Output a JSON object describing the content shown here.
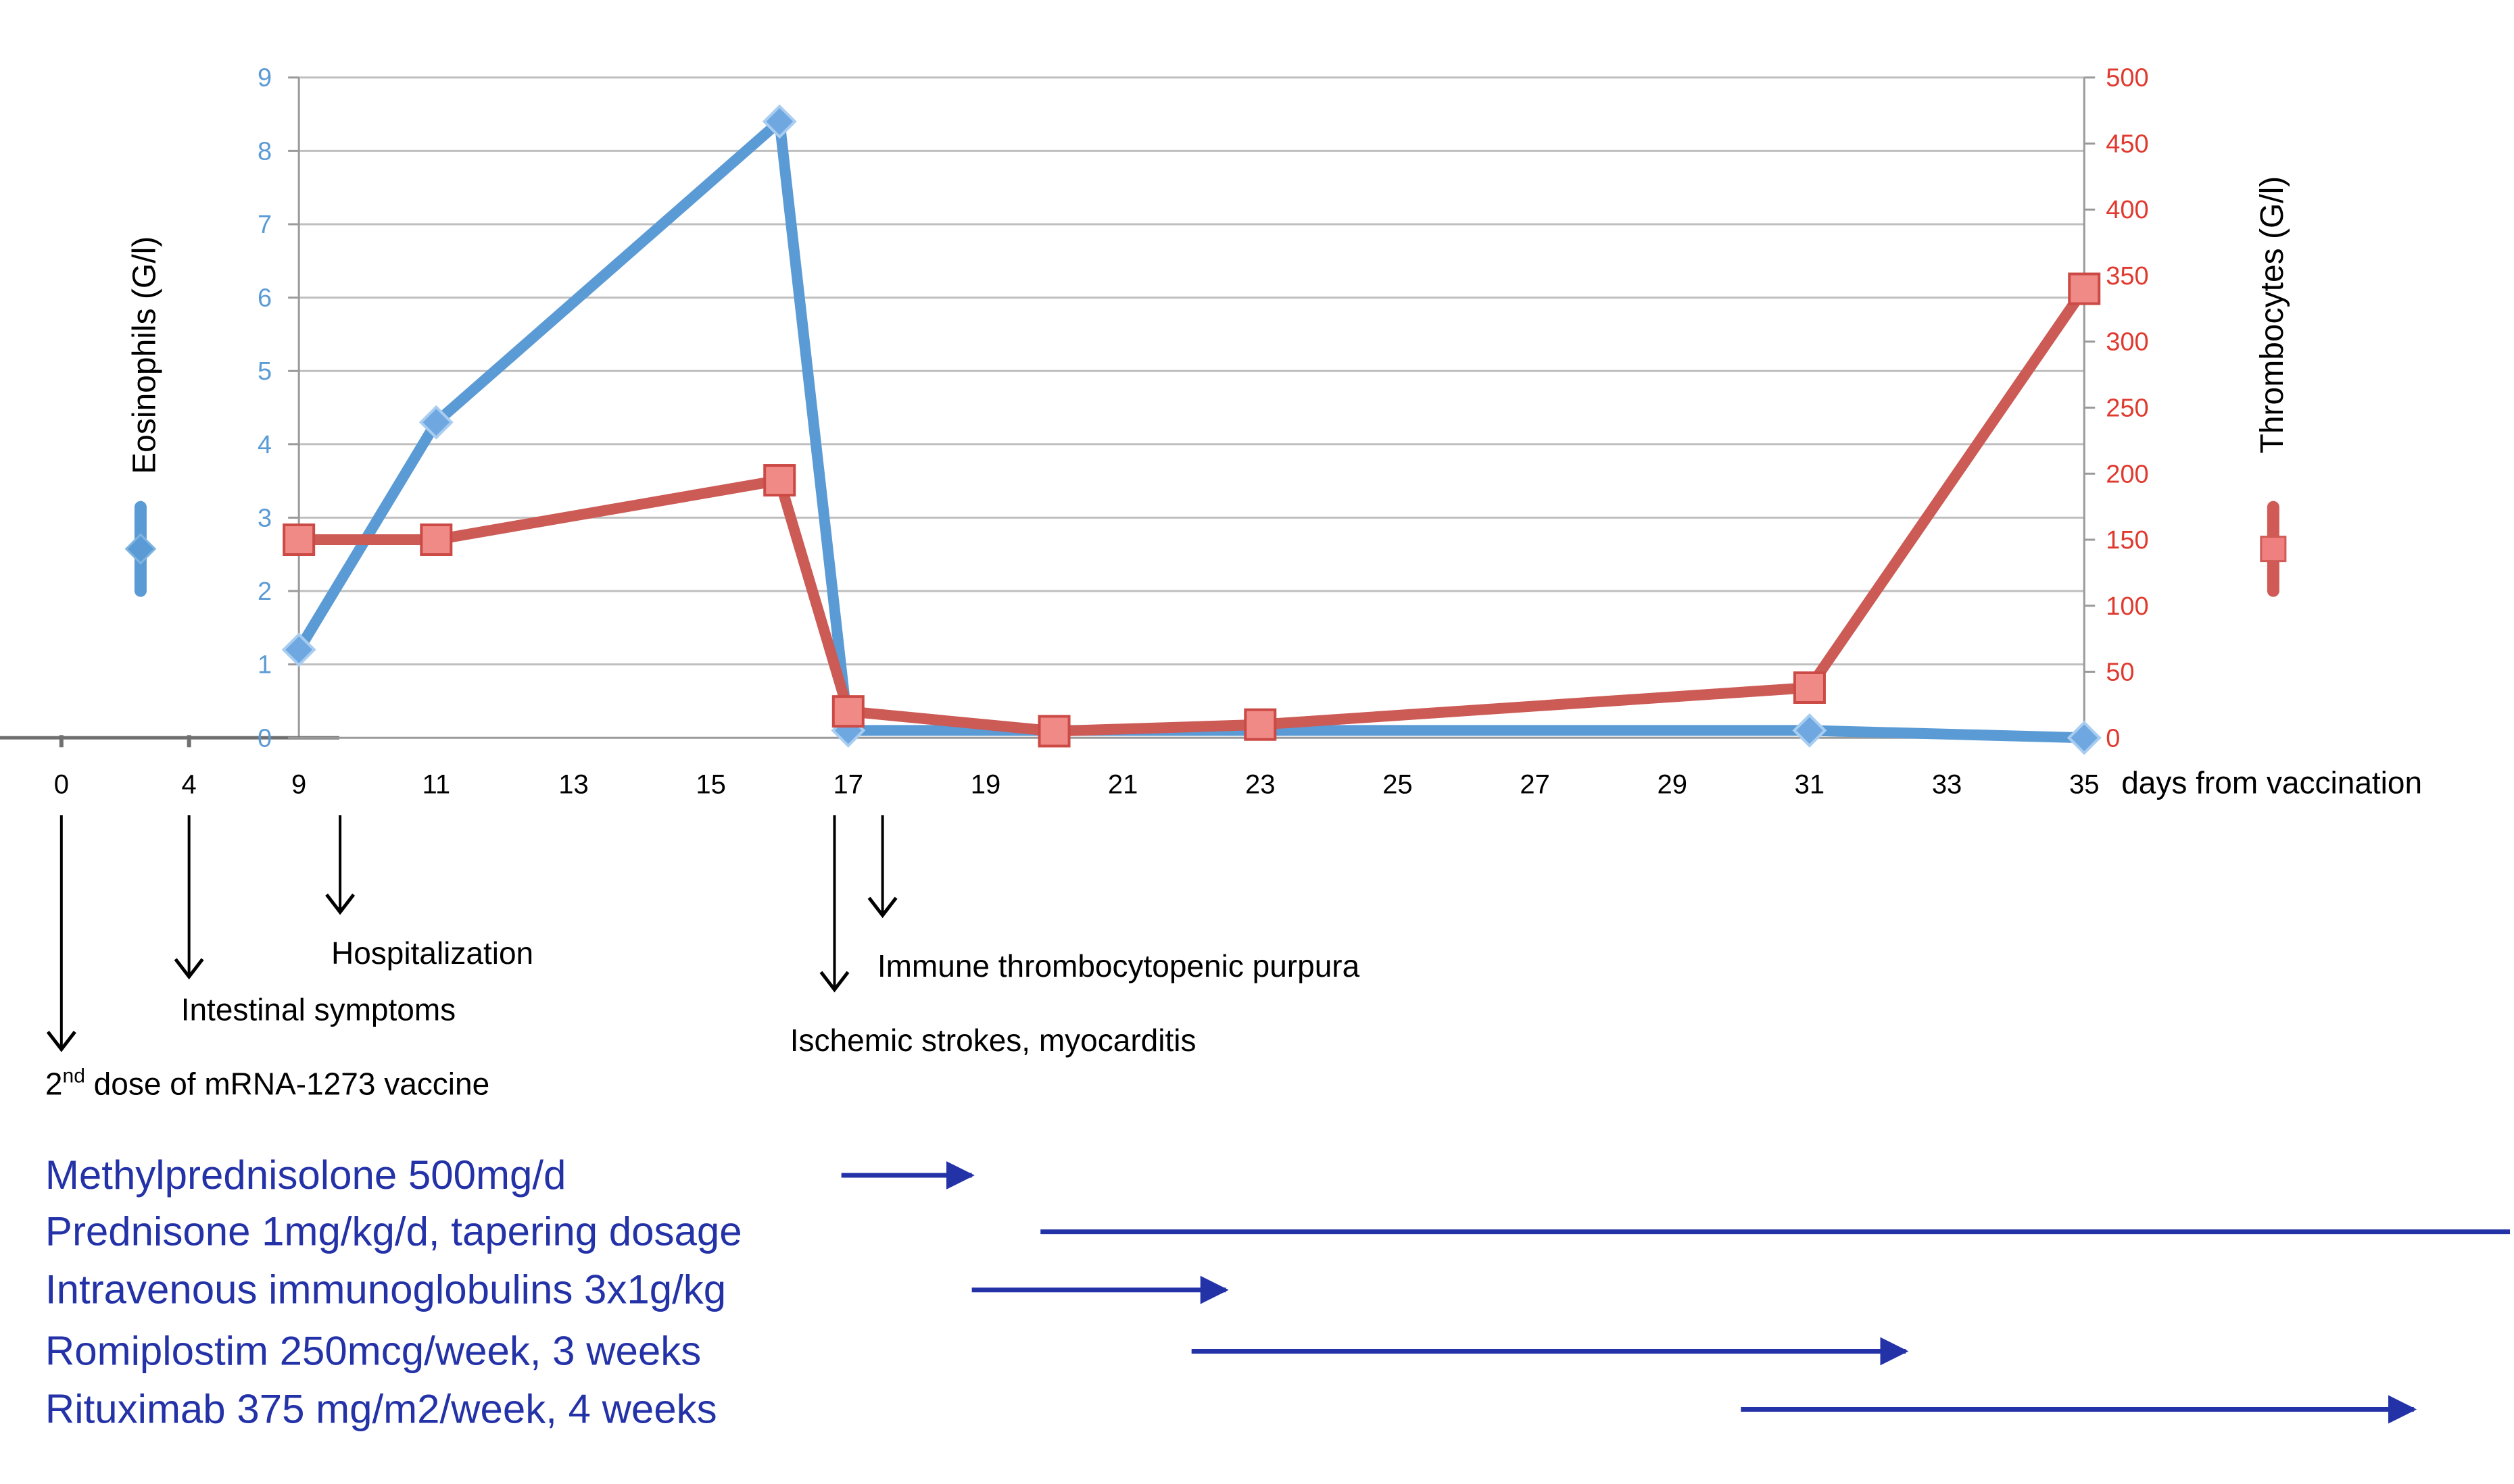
{
  "chart_data": {
    "type": "line",
    "xlabel": "days from vaccination",
    "y_left_label": "Eosinophils (G/l)",
    "y_right_label": "Thrombocytes (G/l)",
    "x_ticks": [
      0,
      4,
      9,
      11,
      13,
      15,
      17,
      19,
      21,
      23,
      25,
      27,
      29,
      31,
      33,
      35
    ],
    "y_left_ticks": [
      0,
      1,
      2,
      3,
      4,
      5,
      6,
      7,
      8,
      9
    ],
    "y_right_ticks": [
      0,
      50,
      100,
      150,
      200,
      250,
      300,
      350,
      400,
      450,
      500
    ],
    "ylim_left": [
      0,
      9
    ],
    "ylim_right": [
      0,
      500
    ],
    "grid": true,
    "series": [
      {
        "axis": "left",
        "color": "#5b9bd5",
        "marker": "diamond",
        "x": [
          9,
          11,
          16,
          17,
          31,
          35
        ],
        "y": [
          1.2,
          4.3,
          8.4,
          0.1,
          0.1,
          0.0
        ]
      },
      {
        "axis": "right",
        "color": "#d9534f",
        "marker": "square",
        "x": [
          9,
          11,
          16,
          17,
          20,
          23,
          31,
          35
        ],
        "y": [
          150,
          150,
          195,
          20,
          5,
          10,
          38,
          340
        ]
      }
    ],
    "events": [
      {
        "day": 0,
        "label_pre": "2",
        "label_sup": "nd",
        "label_post": " dose of mRNA-1273 vaccine"
      },
      {
        "day": 4,
        "label_pre": "Intestinal symptoms",
        "label_sup": "",
        "label_post": ""
      },
      {
        "day": 9.6,
        "label_pre": "Hospitalization",
        "label_sup": "",
        "label_post": ""
      },
      {
        "day": 16.8,
        "label_pre": "Ischemic strokes, myocarditis",
        "label_sup": "",
        "label_post": ""
      },
      {
        "day": 17.5,
        "label_pre": "Immune thrombocytopenic purpura",
        "label_sup": "",
        "label_post": ""
      }
    ],
    "treatments": [
      {
        "label": "Methylprednisolone 500mg/d",
        "start": 16.9,
        "end": 18.8,
        "arrow": true
      },
      {
        "label": "Prednisone 1mg/kg/d, tapering dosage",
        "start": 19.8,
        "end": 41.2,
        "arrow": false
      },
      {
        "label": "Intravenous immunoglobulins 3x1g/kg",
        "start": 18.8,
        "end": 22.5,
        "arrow": true
      },
      {
        "label": "Romiplostim 250mcg/week, 3 weeks",
        "start": 22.0,
        "end": 32.4,
        "arrow": true
      },
      {
        "label": "Rituximab 375 mg/m2/week, 4 weeks",
        "start": 30.0,
        "end": 39.8,
        "arrow": true
      }
    ],
    "colors": {
      "left_axis": "#5b9bd5",
      "right_axis": "#e03a2f",
      "treatment_text": "#2432a8",
      "grid": "#bfbfbf"
    }
  }
}
